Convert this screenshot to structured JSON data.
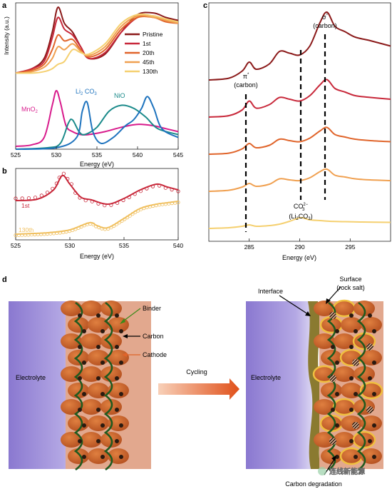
{
  "panels": {
    "a": "a",
    "b": "b",
    "c": "c",
    "d": "d"
  },
  "chart_data": [
    {
      "panel": "a",
      "type": "line",
      "xlabel": "Energy (eV)",
      "ylabel": "Intensity (a.u.)",
      "xlim": [
        525,
        545
      ],
      "xticks": [
        525,
        530,
        535,
        540,
        545
      ],
      "legend_placement": "top-right",
      "series": [
        {
          "name": "Pristine",
          "color": "#8b1a1a"
        },
        {
          "name": "1st",
          "color": "#c8283a"
        },
        {
          "name": "20th",
          "color": "#e0642a"
        },
        {
          "name": "45th",
          "color": "#f0a050"
        },
        {
          "name": "130th",
          "color": "#f5d070"
        }
      ],
      "reference_labels": [
        {
          "text": "MnO",
          "sub": "2",
          "color": "#d81b8c"
        },
        {
          "text": "Li",
          "sub": "2",
          "text2": " CO",
          "sub2": "3",
          "color": "#1e73be"
        },
        {
          "text": "NiO",
          "color": "#1a8a8a"
        }
      ],
      "upper_curves": [
        {
          "x": [
            525,
            527,
            528.5,
            529.5,
            530.2,
            531,
            532,
            533,
            534,
            536,
            538,
            540,
            542,
            543.5,
            545
          ],
          "y": [
            0.52,
            0.55,
            0.62,
            0.8,
            0.97,
            0.86,
            0.8,
            0.7,
            0.62,
            0.65,
            0.8,
            0.92,
            0.93,
            0.9,
            0.88
          ]
        },
        {
          "x": [
            525,
            527,
            528.5,
            529.5,
            530.2,
            531,
            532,
            533,
            534,
            536,
            538,
            540,
            542,
            543.5,
            545
          ],
          "y": [
            0.52,
            0.55,
            0.6,
            0.76,
            0.9,
            0.82,
            0.78,
            0.7,
            0.62,
            0.66,
            0.8,
            0.9,
            0.91,
            0.88,
            0.86
          ]
        },
        {
          "x": [
            525,
            527,
            528.5,
            529.5,
            530.2,
            531,
            532,
            533,
            534,
            536,
            538,
            540,
            542,
            543.5,
            545
          ],
          "y": [
            0.52,
            0.54,
            0.58,
            0.68,
            0.78,
            0.74,
            0.75,
            0.68,
            0.63,
            0.68,
            0.82,
            0.9,
            0.9,
            0.87,
            0.86
          ]
        },
        {
          "x": [
            525,
            527,
            528.5,
            529.5,
            530.2,
            531,
            532,
            533,
            534,
            536,
            538,
            540,
            542,
            543.5,
            545
          ],
          "y": [
            0.52,
            0.53,
            0.56,
            0.62,
            0.7,
            0.68,
            0.72,
            0.67,
            0.64,
            0.7,
            0.84,
            0.91,
            0.9,
            0.88,
            0.86
          ]
        },
        {
          "x": [
            525,
            527,
            528.5,
            529.5,
            530.2,
            531,
            532,
            533,
            534,
            536,
            538,
            540,
            542,
            543.5,
            545
          ],
          "y": [
            0.52,
            0.52,
            0.53,
            0.55,
            0.58,
            0.6,
            0.68,
            0.66,
            0.65,
            0.72,
            0.86,
            0.92,
            0.91,
            0.89,
            0.87
          ]
        }
      ],
      "reference_curves": [
        {
          "color": "#d81b8c",
          "x": [
            525,
            527,
            528.5,
            529.5,
            530,
            530.5,
            531.2,
            532,
            533,
            534,
            536,
            538,
            540,
            542,
            543.5,
            545
          ],
          "y": [
            0.02,
            0.03,
            0.08,
            0.3,
            0.4,
            0.32,
            0.16,
            0.12,
            0.1,
            0.1,
            0.12,
            0.15,
            0.17,
            0.16,
            0.14,
            0.12
          ]
        },
        {
          "color": "#1a8a8a",
          "x": [
            525,
            529,
            530.5,
            531.5,
            532,
            532.8,
            533.5,
            535,
            536.5,
            538,
            539.5,
            541,
            542.5,
            545
          ],
          "y": [
            0.0,
            0.01,
            0.04,
            0.18,
            0.2,
            0.12,
            0.1,
            0.15,
            0.26,
            0.3,
            0.28,
            0.22,
            0.14,
            0.1
          ]
        },
        {
          "color": "#1e73be",
          "x": [
            525,
            530,
            532.5,
            533.2,
            533.8,
            534.5,
            535.5,
            537,
            538.5,
            539.5,
            540.5,
            541.2,
            542,
            543,
            545
          ],
          "y": [
            0.0,
            0.01,
            0.08,
            0.26,
            0.32,
            0.12,
            0.04,
            0.08,
            0.16,
            0.2,
            0.28,
            0.36,
            0.28,
            0.14,
            0.08
          ]
        }
      ]
    },
    {
      "panel": "b",
      "type": "line",
      "xlabel": "Energy (eV)",
      "xlim": [
        525,
        540
      ],
      "xticks": [
        525,
        530,
        535,
        540
      ],
      "series": [
        {
          "name": "1st",
          "color": "#c8283a",
          "x": [
            525,
            527,
            528.5,
            529.3,
            530,
            531,
            532,
            533.5,
            535,
            536.5,
            538,
            539,
            540
          ],
          "y": [
            0.55,
            0.57,
            0.7,
            0.9,
            0.78,
            0.6,
            0.56,
            0.5,
            0.58,
            0.7,
            0.78,
            0.74,
            0.7
          ]
        },
        {
          "name": "130th",
          "color": "#f0c060",
          "x": [
            525,
            528,
            530,
            531.8,
            532.5,
            533.5,
            535,
            536.5,
            538,
            539,
            540
          ],
          "y": [
            0.08,
            0.1,
            0.14,
            0.24,
            0.2,
            0.17,
            0.3,
            0.44,
            0.5,
            0.52,
            0.54
          ]
        }
      ]
    },
    {
      "panel": "c",
      "type": "line",
      "xlabel": "Energy (eV)",
      "xlim": [
        281,
        299
      ],
      "xticks": [
        285,
        290,
        295
      ],
      "annotations": [
        {
          "symbol": "π",
          "sup": "*",
          "line2": "(carbon)",
          "x": 285
        },
        {
          "symbol": "σ",
          "sup": "*",
          "line2": "(carbon)",
          "x": 292.6
        },
        {
          "symbol": "CO",
          "sub": "3",
          "sup": "2−",
          "line2": "(Li",
          "line2_sub": "2",
          "line2_end": "CO",
          "line2_sub2": "3",
          "line2_close": ")",
          "x": 290.3
        }
      ],
      "series": [
        {
          "name": "Pristine",
          "color": "#8b1a1a",
          "offset": 4.0,
          "x": [
            281,
            283,
            284.3,
            285,
            285.7,
            287,
            288,
            289,
            290,
            291,
            292,
            292.7,
            293.5,
            294.5,
            295.5,
            297,
            299
          ],
          "y": [
            0.0,
            0.05,
            0.25,
            0.5,
            0.3,
            0.45,
            0.8,
            0.75,
            0.7,
            0.95,
            1.6,
            1.9,
            1.5,
            1.35,
            1.2,
            1.1,
            0.95
          ]
        },
        {
          "name": "1st",
          "color": "#c8283a",
          "offset": 3.0,
          "x": [
            281,
            283,
            284.3,
            285,
            285.7,
            287,
            288,
            289,
            290,
            291,
            292,
            292.7,
            293.5,
            294.5,
            295.5,
            297,
            299
          ],
          "y": [
            0.0,
            0.04,
            0.2,
            0.45,
            0.25,
            0.35,
            0.55,
            0.5,
            0.45,
            0.6,
            0.9,
            1.05,
            0.8,
            0.7,
            0.6,
            0.55,
            0.5
          ]
        },
        {
          "name": "20th",
          "color": "#e0642a",
          "offset": 2.0,
          "x": [
            281,
            283,
            284.3,
            285,
            285.7,
            287,
            288,
            289,
            290,
            291,
            292,
            292.7,
            293.5,
            294.5,
            295.5,
            297,
            299
          ],
          "y": [
            0.0,
            0.03,
            0.15,
            0.3,
            0.18,
            0.25,
            0.42,
            0.38,
            0.35,
            0.45,
            0.65,
            0.75,
            0.55,
            0.48,
            0.42,
            0.38,
            0.35
          ]
        },
        {
          "name": "45th",
          "color": "#f0a050",
          "offset": 1.0,
          "x": [
            281,
            283,
            284.3,
            285,
            285.7,
            287,
            288,
            289,
            290,
            291,
            292,
            292.7,
            293.5,
            294.5,
            295.5,
            297,
            299
          ],
          "y": [
            0.0,
            0.03,
            0.12,
            0.22,
            0.14,
            0.2,
            0.35,
            0.32,
            0.3,
            0.38,
            0.55,
            0.62,
            0.45,
            0.4,
            0.35,
            0.32,
            0.3
          ]
        },
        {
          "name": "130th",
          "color": "#f5d070",
          "offset": 0.0,
          "x": [
            281,
            283,
            284.3,
            285,
            285.7,
            287,
            288,
            289,
            290,
            290.5,
            291,
            292,
            293,
            294.5,
            296,
            299
          ],
          "y": [
            0.0,
            0.02,
            0.06,
            0.1,
            0.06,
            0.08,
            0.12,
            0.2,
            0.3,
            0.28,
            0.24,
            0.22,
            0.2,
            0.19,
            0.18,
            0.17
          ]
        }
      ]
    }
  ],
  "schematic": {
    "labels": {
      "binder": "Binder",
      "carbon": "Carbon",
      "cathode": "Cathode",
      "electrolyte_left": "Electrolyte",
      "electrolyte_right": "Electrolyte",
      "cycling": "Cycling",
      "interface": "Interface",
      "surface_line1": "Surface",
      "surface_line2": "(rock salt)",
      "carbon_degradation": "Carbon degradation"
    },
    "colors": {
      "electrolyte_gradient_start": "#9a8cd8",
      "cathode_bg": "#e0a48a",
      "particle": "#c8642a",
      "binder": "#1f5a1f",
      "carbon": "#2a1a10",
      "interface": "#8a7a30",
      "rocksalt_rim": "#f0c040",
      "arrow_start": "#f5c0a0",
      "arrow_end": "#e0501a"
    }
  },
  "watermark": "连线新能源"
}
